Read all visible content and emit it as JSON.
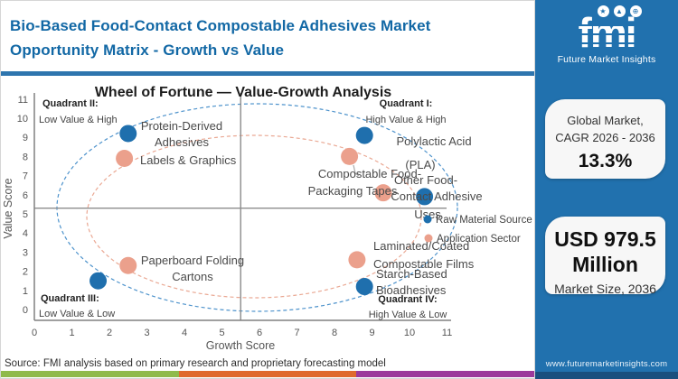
{
  "header": {
    "title_line1": "Bio-Based Food-Contact Compostable Adhesives Market",
    "title_line2": "Opportunity Matrix - Growth vs Value"
  },
  "source_note": "Source: FMI analysis based on primary research and proprietary forecasting model",
  "sidebar": {
    "logo": {
      "text": "fmi",
      "subtext": "Future Market Insights"
    },
    "card_cagr": {
      "line1": "Global Market,",
      "line2": "CAGR 2026 - 2036",
      "value": "13.3%"
    },
    "card_size": {
      "value_line1": "USD 979.5",
      "value_line2": "Million",
      "label": "Market Size, 2036"
    },
    "website": "www.futuremarketinsights.com"
  },
  "colors": {
    "brand_blue": "#2171ae",
    "title_blue": "#1268a5",
    "dot_blue": "#1f6fad",
    "dot_pink": "#eba08c",
    "ellipse_blue": "#4e93cc",
    "ellipse_pink": "#eaa893",
    "strip_green": "#8fba4c",
    "strip_orange": "#df6a2d",
    "strip_purple": "#9b3a9b",
    "sidebar_footer": "#1a4f7e"
  },
  "chart_data": {
    "type": "scatter",
    "title": "Wheel of Fortune — Value-Growth Analysis",
    "xlabel": "Growth Score",
    "ylabel": "Value Score",
    "xlim": [
      0,
      11.5
    ],
    "ylim": [
      0,
      11.5
    ],
    "x_ticks": [
      0,
      1,
      2,
      3,
      4,
      5,
      6,
      7,
      8,
      9,
      10,
      11
    ],
    "y_ticks": [
      0,
      1,
      2,
      3,
      4,
      5,
      6,
      7,
      8,
      9,
      10,
      11
    ],
    "grid": false,
    "quadrant_divider": {
      "x": 5.5,
      "y": 5.3
    },
    "quadrants": [
      {
        "name": "Quadrant II:",
        "desc": "Low Value & High"
      },
      {
        "name": "Quadrant I:",
        "desc": "High Value & High"
      },
      {
        "name": "Quadrant III:",
        "desc": "Low Value & Low"
      },
      {
        "name": "Quadrant IV:",
        "desc": "High Value & Low"
      }
    ],
    "legend": [
      {
        "name": "Raw Material Source",
        "color": "#1f6fad"
      },
      {
        "name": "Application Sector",
        "color": "#eba08c"
      }
    ],
    "legend_position": "right-center",
    "series": [
      {
        "name": "Raw Material Source",
        "color": "#1f6fad",
        "points": [
          {
            "label": "Protein-Derived Adhesives",
            "label_lines": [
              "Protein-Derived",
              "Adhesives"
            ],
            "x": 2.5,
            "y": 9.2
          },
          {
            "label": "Polylactic Acid (PLA)",
            "label_lines": [
              "Polylactic Acid",
              "(PLA)"
            ],
            "x": 8.8,
            "y": 9.1
          },
          {
            "label": "Other Food-Contact Adhesive Uses",
            "label_lines": [
              "Other Food-",
              "Contact Adhesive",
              "Uses"
            ],
            "x": 10.4,
            "y": 5.9
          },
          {
            "label": "Starch-Based Bioadhesives",
            "label_lines": [
              "Starch-Based",
              "Bioadhesives"
            ],
            "x": 8.8,
            "y": 1.2
          },
          {
            "label": "",
            "label_lines": [],
            "x": 1.7,
            "y": 1.5
          }
        ]
      },
      {
        "name": "Application Sector",
        "color": "#eba08c",
        "points": [
          {
            "label": "Labels & Graphics",
            "label_lines": [
              "Labels & Graphics"
            ],
            "x": 2.4,
            "y": 7.9
          },
          {
            "label": "Compostable Food-Packaging Tapes",
            "label_lines": [
              "Compostable Food-",
              "Packaging Tapes"
            ],
            "x": 8.4,
            "y": 8.0
          },
          {
            "label": "",
            "label_lines": [],
            "x": 9.3,
            "y": 6.1
          },
          {
            "label": "Laminated/Coated Compostable Films",
            "label_lines": [
              "Laminated/Coated",
              "Compostable Films"
            ],
            "x": 8.6,
            "y": 2.6
          },
          {
            "label": "Paperboard Folding Cartons",
            "label_lines": [
              "Paperboard Folding",
              "Cartons"
            ],
            "x": 2.5,
            "y": 2.3
          }
        ]
      }
    ]
  }
}
